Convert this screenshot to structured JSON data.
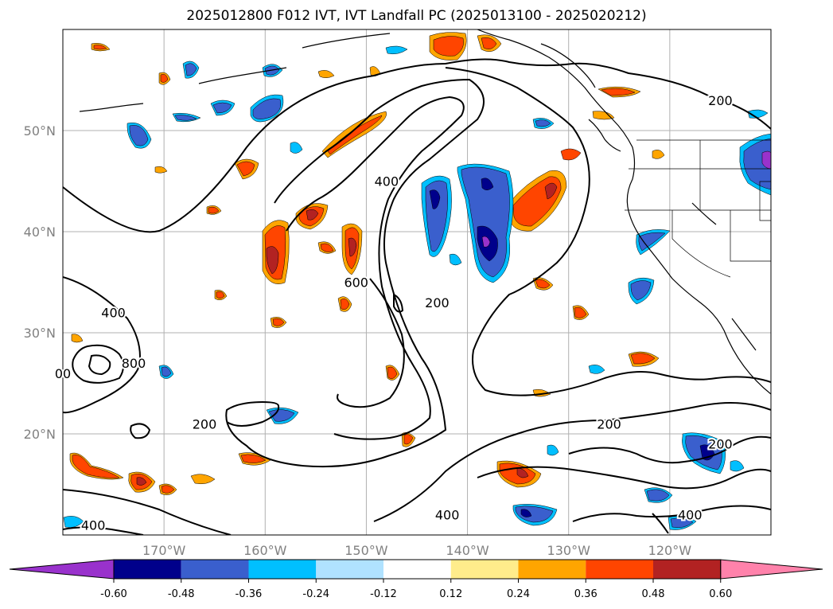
{
  "title": "2025012800 F012 IVT, IVT Landfall PC (2025013100 - 2025020212)",
  "map": {
    "projection": "equirectangular",
    "lon_range": [
      -180,
      -110
    ],
    "lat_range": [
      10,
      60
    ],
    "latitude_labels": [
      {
        "lat": 50,
        "text": "50°N"
      },
      {
        "lat": 40,
        "text": "40°N"
      },
      {
        "lat": 30,
        "text": "30°N"
      },
      {
        "lat": 20,
        "text": "20°N"
      }
    ],
    "longitude_labels": [
      {
        "lon": -170,
        "text": "170°W"
      },
      {
        "lon": -160,
        "text": "160°W"
      },
      {
        "lon": -150,
        "text": "150°W"
      },
      {
        "lon": -140,
        "text": "140°W"
      },
      {
        "lon": -130,
        "text": "130°W"
      },
      {
        "lon": -120,
        "text": "120°W"
      }
    ],
    "grid": true,
    "grid_color": "#b0b0b0",
    "contour_labels": [
      {
        "text": "200",
        "lon": -115,
        "lat": 53
      },
      {
        "text": "400",
        "lon": -148,
        "lat": 45
      },
      {
        "text": "600",
        "lon": -151,
        "lat": 35
      },
      {
        "text": "200",
        "lon": -143,
        "lat": 33
      },
      {
        "text": "400",
        "lon": -175,
        "lat": 32
      },
      {
        "text": "800",
        "lon": -173,
        "lat": 27
      },
      {
        "text": "00",
        "lon": -180,
        "lat": 26
      },
      {
        "text": "200",
        "lon": -166,
        "lat": 21
      },
      {
        "text": "200",
        "lon": -126,
        "lat": 21
      },
      {
        "text": "200",
        "lon": -115,
        "lat": 19
      },
      {
        "text": "400",
        "lon": -142,
        "lat": 12
      },
      {
        "text": "400",
        "lon": -118,
        "lat": 12
      },
      {
        "text": "400",
        "lon": -177,
        "lat": 11
      }
    ]
  },
  "colorbar": {
    "ticks": [
      "-0.60",
      "-0.48",
      "-0.36",
      "-0.24",
      "-0.12",
      "0.12",
      "0.24",
      "0.36",
      "0.48",
      "0.60"
    ],
    "colors": [
      "#9932cc",
      "#00008b",
      "#3a5fcd",
      "#00bfff",
      "#b0e2ff",
      "#ffffff",
      "#ffec8b",
      "#ffa500",
      "#ff4500",
      "#b22222",
      "#ff82ab"
    ],
    "extend": "both"
  },
  "pc_colors": {
    "pos1": "#ffec8b",
    "pos2": "#ffa500",
    "pos3": "#ff4500",
    "pos4": "#b22222",
    "neg1": "#b0e2ff",
    "neg2": "#00bfff",
    "neg3": "#3a5fcd",
    "neg4": "#00008b",
    "neg5": "#9932cc"
  }
}
